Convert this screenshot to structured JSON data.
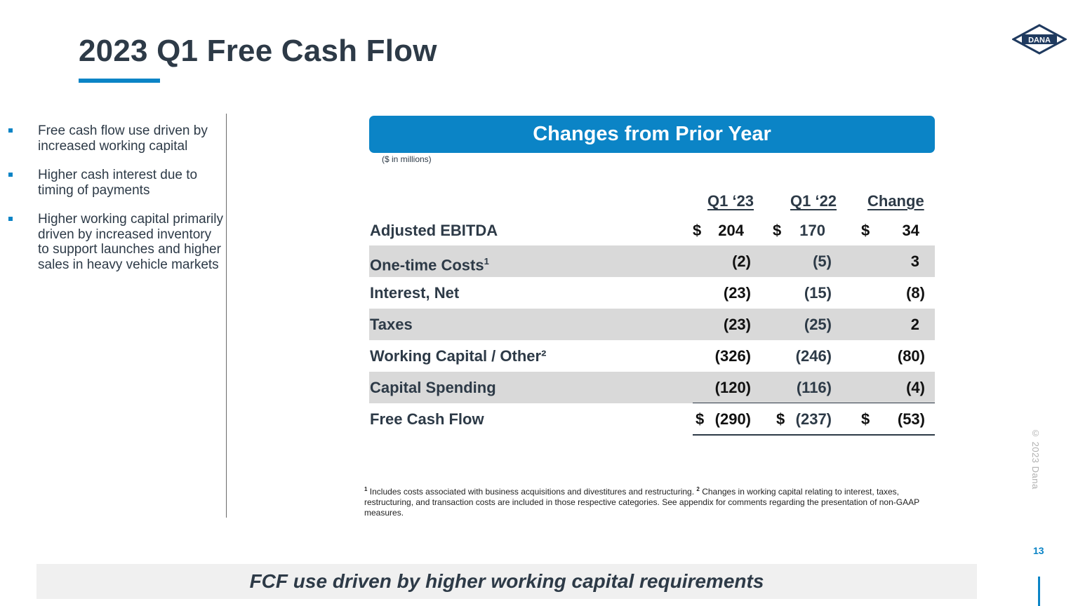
{
  "slide": {
    "title": "2023 Q1 Free Cash Flow",
    "logo_text": "DANA",
    "page_number": "13",
    "copyright": "© 2023 Dana",
    "accent_color": "#0b84c6"
  },
  "bullets": [
    "Free cash flow use driven by increased working capital",
    "Higher cash interest due to timing of payments",
    "Higher working capital primarily driven by increased inventory to support launches and  higher sales in heavy vehicle markets"
  ],
  "table": {
    "banner": "Changes from Prior Year",
    "units": "($ in millions)",
    "columns": [
      "Q1 ‘23",
      "Q1 ‘22",
      "Change"
    ],
    "currency_symbol": "$",
    "rows": [
      {
        "label": "Adjusted EBITDA",
        "values": [
          "204",
          "170",
          "34"
        ]
      },
      {
        "label": "One-time Costs",
        "sup": "1",
        "values": [
          "(2)",
          "(5)",
          "3"
        ]
      },
      {
        "label": "Interest, Net",
        "values": [
          "(23)",
          "(15)",
          "(8)"
        ]
      },
      {
        "label": "Taxes",
        "values": [
          "(23)",
          "(25)",
          "2"
        ]
      },
      {
        "label": "Working Capital / Other²",
        "values": [
          "(326)",
          "(246)",
          "(80)"
        ]
      },
      {
        "label": "Capital Spending",
        "values": [
          "(120)",
          "(116)",
          "(4)"
        ]
      },
      {
        "label": "Free Cash Flow",
        "values": [
          "(290)",
          "(237)",
          "(53)"
        ]
      }
    ]
  },
  "footnote": {
    "sup1": "1",
    "text1": "Includes costs associated with business acquisitions and divestitures and restructuring.",
    "sup2": "2",
    "text2": "Changes in working capital relating to interest, taxes, restructuring, and transaction costs are included in those respective categories.  See appendix for comments regarding the presentation of non-GAAP measures."
  },
  "conclusion": "FCF use driven by higher working capital requirements"
}
